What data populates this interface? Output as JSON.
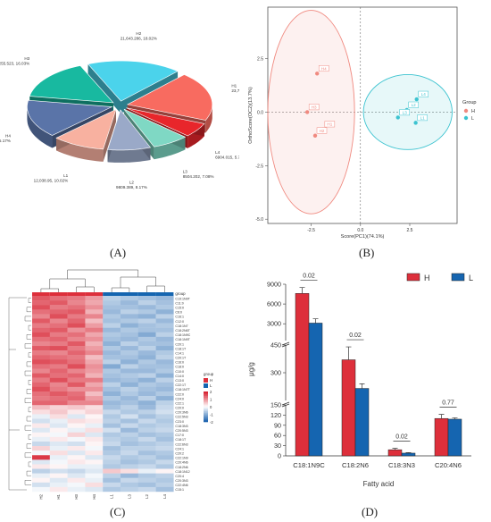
{
  "panel_labels": {
    "A": "(A)",
    "B": "(B)",
    "C": "(C)",
    "D": "(D)"
  },
  "colors": {
    "H": "#dd2f3b",
    "L": "#1565b0",
    "pca_H": "#f08a80",
    "pca_L": "#3cc3d0"
  },
  "chart_data": [
    {
      "type": "pie",
      "panel": "A",
      "slices": [
        {
          "name": "H1",
          "value": 23721.812,
          "percent": "19.75%",
          "label": "H1\n23,721.812, 19.75%",
          "color": "#f86b60"
        },
        {
          "name": "L4",
          "value": 6904.015,
          "percent": "5.75%",
          "label": "L4\n6904.015, 5.75%",
          "color": "#e8262b"
        },
        {
          "name": "L3",
          "value": 8504.202,
          "percent": "7.08%",
          "label": "L3\n8504.202, 7.08%",
          "color": "#7fd8c4"
        },
        {
          "name": "L2",
          "value": 9809.389,
          "percent": "8.17%",
          "label": "L2\n9809.389, 8.17%",
          "color": "#9aa9c8"
        },
        {
          "name": "L1",
          "value": 12038.95,
          "percent": "10.02%",
          "label": "L1\n12,038.95, 10.02%",
          "color": "#f8b1a0"
        },
        {
          "name": "H4",
          "value": 18224.793,
          "percent": "15.17%",
          "label": "H4\n18,224.793, 15.17%",
          "color": "#5a74a8"
        },
        {
          "name": "H3",
          "value": 19255.523,
          "percent": "16.03%",
          "label": "H3\n19,255.523, 16.03%",
          "color": "#18b9a0"
        },
        {
          "name": "H2",
          "value": 21643.286,
          "percent": "18.02%",
          "label": "H2\n21,643.286, 18.02%",
          "color": "#4bd3eb"
        }
      ]
    },
    {
      "type": "scatter",
      "panel": "B",
      "xlabel": "Score(PC1)(74.1%)",
      "ylabel": "OrthoScore(OC2)(13.7%)",
      "xlim": [
        -4.7,
        4.9
      ],
      "ylim": [
        -5.2,
        4.9
      ],
      "xticks": [
        -2.5,
        0.0,
        2.5
      ],
      "yticks": [
        -5.0,
        -2.5,
        0.0,
        2.5
      ],
      "xticklabels": [
        "-2.5",
        "0.0",
        "2.5"
      ],
      "yticklabels": [
        "-5.0",
        "-2.5",
        "0.0",
        "2.5"
      ],
      "legend_title": "Group",
      "legend_position": "right",
      "series": [
        {
          "name": "H",
          "points": [
            {
              "label": "H4",
              "x": -2.2,
              "y": 1.8
            },
            {
              "label": "H3",
              "x": -2.7,
              "y": 0.0
            },
            {
              "label": "H1",
              "x": -1.9,
              "y": -0.8
            },
            {
              "label": "H2",
              "x": -2.3,
              "y": -1.1
            }
          ],
          "ellipse": {
            "cx": -2.5,
            "cy": 0.0,
            "rx": 2.2,
            "ry": 4.75
          }
        },
        {
          "name": "L",
          "points": [
            {
              "label": "L2",
              "x": 2.35,
              "y": 0.1
            },
            {
              "label": "L4",
              "x": 2.85,
              "y": 0.6
            },
            {
              "label": "L3",
              "x": 1.9,
              "y": -0.25
            },
            {
              "label": "L1",
              "x": 2.8,
              "y": -0.5
            }
          ],
          "ellipse": {
            "cx": 2.4,
            "cy": 0.0,
            "rx": 2.25,
            "ry": 1.75
          }
        }
      ]
    },
    {
      "type": "heatmap",
      "panel": "C",
      "columns": [
        "H2",
        "H1",
        "H3",
        "H4",
        "L1",
        "L3",
        "L2",
        "L4"
      ],
      "column_groups": [
        "H",
        "H",
        "H",
        "H",
        "L",
        "L",
        "L",
        "L"
      ],
      "rows": [
        "C19:1N9T",
        "C11:0",
        "C15:0",
        "C6:0",
        "C16:1",
        "C12:0",
        "C18:1N7",
        "C18:2N6T",
        "C18:1N9C",
        "C18:1N9T",
        "C20:1",
        "C18:1T",
        "C14:1",
        "C20:1T",
        "C16:0",
        "C18:0",
        "C10:0",
        "C14:0",
        "C13:0",
        "C22:1T",
        "C18:1N7T",
        "C22:0",
        "C24:0",
        "C22:1",
        "C20:0",
        "C20:3N6",
        "C22:5N3",
        "C23:0",
        "C18:3N3",
        "C20:5N3",
        "C17:0",
        "C18:1T",
        "C22:6N3",
        "C24:1",
        "C20:2",
        "C22:1N9",
        "C20:4N6",
        "C18:2N6",
        "C18:1N12",
        "C20:4",
        "C20:3N3",
        "C22:4N6",
        "C15:1"
      ],
      "values": [
        [
          1.5,
          1.3,
          1.2,
          0.9,
          -0.6,
          -0.7,
          -0.8,
          -0.9
        ],
        [
          1.4,
          1.5,
          1.1,
          0.8,
          -0.7,
          -0.9,
          -0.6,
          -0.8
        ],
        [
          1.6,
          1.2,
          1.3,
          1.0,
          -0.8,
          -0.8,
          -0.9,
          -0.7
        ],
        [
          1.3,
          1.4,
          1.5,
          0.7,
          -0.9,
          -0.6,
          -0.7,
          -1.0
        ],
        [
          1.1,
          1.6,
          1.2,
          1.1,
          -0.7,
          -0.9,
          -1.0,
          -0.6
        ],
        [
          1.5,
          1.1,
          1.4,
          0.6,
          -0.8,
          -0.7,
          -0.6,
          -0.9
        ],
        [
          1.2,
          1.3,
          1.6,
          0.9,
          -0.6,
          -1.0,
          -0.8,
          -0.7
        ],
        [
          1.4,
          1.5,
          1.0,
          1.2,
          -0.9,
          -0.7,
          -0.8,
          -0.8
        ],
        [
          1.6,
          1.2,
          1.3,
          0.8,
          -0.7,
          -0.8,
          -1.1,
          -0.6
        ],
        [
          1.3,
          1.4,
          1.1,
          1.0,
          -0.8,
          -0.9,
          -0.7,
          -0.9
        ],
        [
          1.1,
          1.2,
          1.5,
          0.7,
          -1.0,
          -0.6,
          -0.8,
          -0.8
        ],
        [
          1.5,
          1.6,
          1.2,
          0.9,
          -0.7,
          -0.9,
          -0.6,
          -1.0
        ],
        [
          1.2,
          1.1,
          1.4,
          1.1,
          -0.9,
          -0.7,
          -0.9,
          -0.7
        ],
        [
          1.4,
          1.3,
          1.2,
          0.6,
          -0.8,
          -0.8,
          -1.0,
          -0.6
        ],
        [
          1.6,
          1.5,
          1.3,
          0.8,
          -0.6,
          -1.0,
          -0.7,
          -0.9
        ],
        [
          1.3,
          1.2,
          1.6,
          1.0,
          -1.1,
          -0.6,
          -0.8,
          -0.8
        ],
        [
          1.1,
          1.4,
          1.1,
          0.9,
          -0.7,
          -0.9,
          -0.9,
          -0.7
        ],
        [
          1.5,
          1.3,
          1.4,
          0.7,
          -0.8,
          -0.7,
          -0.6,
          -1.0
        ],
        [
          1.2,
          1.6,
          1.2,
          1.2,
          -0.9,
          -0.8,
          -1.0,
          -0.6
        ],
        [
          1.4,
          1.1,
          1.5,
          0.8,
          -0.6,
          -1.0,
          -0.7,
          -0.8
        ],
        [
          1.6,
          1.2,
          1.0,
          1.0,
          -0.8,
          -0.6,
          -0.8,
          -0.9
        ],
        [
          1.3,
          1.5,
          1.3,
          0.6,
          -1.0,
          -0.7,
          -0.9,
          -0.7
        ],
        [
          1.2,
          1.3,
          1.4,
          0.9,
          -0.7,
          -0.9,
          -0.6,
          -1.0
        ],
        [
          1.4,
          1.4,
          1.1,
          1.1,
          -0.9,
          -0.8,
          -1.0,
          -0.6
        ],
        [
          0.6,
          0.4,
          0.5,
          0.3,
          -0.8,
          -0.6,
          -0.9,
          -0.5
        ],
        [
          0.3,
          0.5,
          0.2,
          0.4,
          -0.5,
          -0.7,
          -0.6,
          -0.4
        ],
        [
          -0.2,
          0.3,
          -0.3,
          0.1,
          -0.7,
          -0.4,
          -0.8,
          -0.6
        ],
        [
          -0.4,
          -0.2,
          0.3,
          0.2,
          -0.6,
          -0.8,
          -0.5,
          -0.7
        ],
        [
          0.2,
          -0.3,
          0.1,
          -0.2,
          -0.8,
          -0.5,
          -0.7,
          -0.6
        ],
        [
          -0.3,
          0.1,
          -0.2,
          0.3,
          -0.4,
          -0.9,
          -0.6,
          -0.5
        ],
        [
          0.1,
          -0.1,
          0.4,
          -0.3,
          -0.7,
          -0.6,
          -0.8,
          -0.7
        ],
        [
          -0.2,
          0.2,
          -0.1,
          0.2,
          -0.6,
          -0.7,
          -0.5,
          -0.8
        ],
        [
          -0.5,
          -0.3,
          -0.4,
          0.1,
          -0.5,
          -0.8,
          -0.7,
          -0.6
        ],
        [
          0.4,
          -0.2,
          0.2,
          -0.1,
          -0.8,
          -0.6,
          -0.6,
          -0.5
        ],
        [
          -0.1,
          0.3,
          -0.3,
          0.2,
          -0.7,
          -0.5,
          -0.8,
          -0.7
        ],
        [
          1.8,
          -0.2,
          0.1,
          -0.3,
          -0.5,
          -0.7,
          -0.6,
          -0.8
        ],
        [
          -0.3,
          -0.1,
          0.2,
          0.1,
          -0.6,
          -0.8,
          -0.7,
          -0.5
        ],
        [
          0.2,
          0.1,
          -0.2,
          -0.2,
          -0.7,
          -0.6,
          -0.5,
          -0.7
        ],
        [
          -0.6,
          -0.4,
          -0.5,
          -0.3,
          0.5,
          0.3,
          -0.2,
          0.1
        ],
        [
          -0.2,
          0.1,
          -0.3,
          -0.1,
          -0.6,
          -0.9,
          -0.7,
          -0.6
        ],
        [
          0.1,
          -0.3,
          0.2,
          -0.2,
          -0.8,
          -0.5,
          -0.6,
          -0.7
        ],
        [
          -0.4,
          -0.2,
          -0.1,
          0.3,
          -0.5,
          -0.7,
          -0.8,
          -0.6
        ],
        [
          -0.1,
          0.2,
          -0.2,
          -0.3,
          -0.7,
          -0.6,
          -0.5,
          -0.8
        ]
      ],
      "legend_title": "group",
      "legend_groups": [
        "H",
        "L"
      ],
      "scale_ticks": [
        "2",
        "1",
        "0",
        "-1",
        "-2"
      ],
      "annotation_label": "group"
    },
    {
      "type": "bar",
      "panel": "D",
      "categories": [
        "C18:1N9C",
        "C18:2N6",
        "C18:3N3",
        "C20:4N6"
      ],
      "xlabel": "Fatty acid",
      "ylabel": "μg/g",
      "yticklabels": [
        "0",
        "30",
        "60",
        "90",
        "120",
        "150",
        "300",
        "450",
        "3000",
        "6000",
        "9000"
      ],
      "series": [
        {
          "name": "H",
          "values": [
            7600,
            370,
            18,
            110
          ],
          "errors": [
            900,
            70,
            4,
            12
          ]
        },
        {
          "name": "L",
          "values": [
            3100,
            215,
            8,
            108
          ],
          "errors": [
            650,
            25,
            1.5,
            4
          ]
        }
      ],
      "pvalues": [
        "0.02",
        "0.02",
        "0.02",
        "0.77"
      ],
      "legend_position": "top-right"
    }
  ]
}
